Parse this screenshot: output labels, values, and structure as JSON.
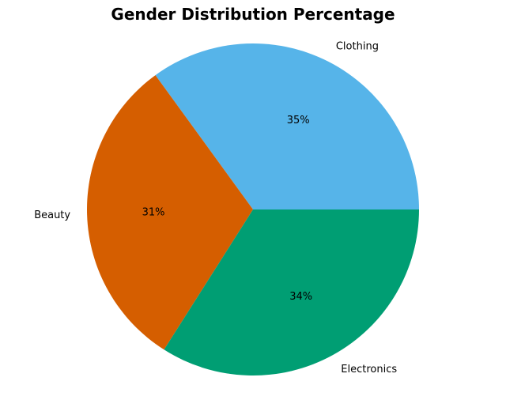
{
  "chart_data": {
    "type": "pie",
    "title": "Gender Distribution Percentage",
    "slices": [
      {
        "label": "Clothing",
        "value": 35,
        "pct_label": "35%",
        "color": "#56B4E9"
      },
      {
        "label": "Beauty",
        "value": 31,
        "pct_label": "31%",
        "color": "#D55E00"
      },
      {
        "label": "Electronics",
        "value": 34,
        "pct_label": "34%",
        "color": "#009E73"
      }
    ],
    "start_angle": 0,
    "direction": "counterclockwise"
  }
}
